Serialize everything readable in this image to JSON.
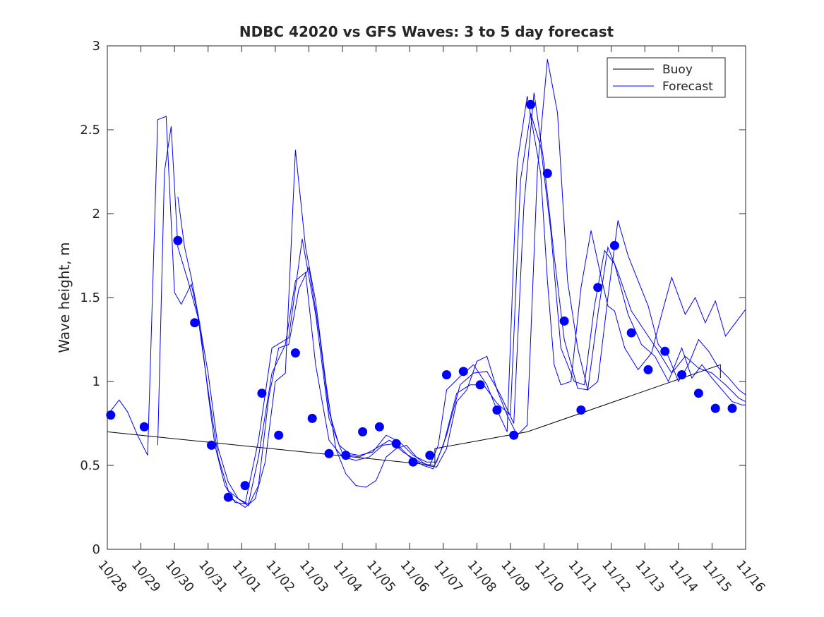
{
  "chart_data": {
    "type": "line",
    "title": "NDBC 42020 vs GFS Waves: 3 to 5 day forecast",
    "xlabel": "",
    "ylabel": "Wave height, m",
    "xlim": [
      0,
      19
    ],
    "ylim": [
      0,
      3
    ],
    "x_ticks": [
      0,
      1,
      2,
      3,
      4,
      5,
      6,
      7,
      8,
      9,
      10,
      11,
      12,
      13,
      14,
      15,
      16,
      17,
      18,
      19
    ],
    "x_tick_labels": [
      "10/28",
      "10/29",
      "10/30",
      "10/31",
      "11/01",
      "11/02",
      "11/03",
      "11/04",
      "11/05",
      "11/06",
      "11/07",
      "11/08",
      "11/09",
      "11/10",
      "11/11",
      "11/12",
      "11/13",
      "11/14",
      "11/15",
      "11/16"
    ],
    "y_ticks": [
      0,
      0.5,
      1,
      1.5,
      2,
      2.5,
      3
    ],
    "y_tick_labels": [
      "0",
      "0.5",
      "1",
      "1.5",
      "2",
      "2.5",
      "3"
    ],
    "legend": {
      "location": "top-right",
      "entries": [
        {
          "label": "Buoy",
          "color": "#000000"
        },
        {
          "label": "Forecast",
          "color": "#0000ff"
        }
      ]
    },
    "series": [
      {
        "name": "Buoy",
        "color": "#000000",
        "x": [
          0,
          9.75,
          9.75,
          12.5,
          18.25,
          18.25
        ],
        "y": [
          0.7,
          0.5,
          0.6,
          0.7,
          1.1,
          1.02
        ]
      },
      {
        "name": "Forecast (run 1)",
        "color": "#0000ff",
        "x": [
          0,
          0.2,
          0.35,
          0.6,
          0.9,
          1.2,
          1.5,
          1.75,
          2.0,
          2.2,
          2.5,
          2.75,
          3.0,
          3.2,
          3.5,
          3.8,
          4.1,
          4.5,
          4.9,
          5.4,
          5.8,
          6.2,
          6.6,
          7.0,
          7.5,
          7.9,
          8.4,
          8.8,
          9.3,
          9.6,
          9.85,
          10.1,
          10.5,
          10.9,
          11.3,
          11.6,
          11.9,
          12.2,
          12.5,
          12.9,
          13.1,
          13.3,
          13.5,
          13.8,
          14.1,
          14.4,
          14.7,
          14.9,
          15.1,
          15.4,
          15.8,
          16.2,
          16.5,
          16.8,
          17.2,
          17.5,
          17.8,
          18.1,
          18.4,
          18.7,
          19.0
        ],
        "y": [
          0.8,
          0.85,
          0.89,
          0.82,
          0.68,
          0.56,
          2.56,
          2.58,
          1.53,
          1.46,
          1.58,
          1.35,
          0.93,
          0.62,
          0.38,
          0.28,
          0.27,
          0.65,
          1.2,
          1.26,
          1.85,
          1.4,
          0.78,
          0.57,
          0.55,
          0.59,
          0.65,
          0.58,
          0.52,
          0.5,
          0.62,
          0.95,
          1.03,
          1.1,
          0.98,
          0.83,
          0.7,
          2.3,
          2.7,
          2.24,
          1.6,
          1.1,
          0.98,
          1.0,
          1.56,
          1.9,
          1.62,
          1.45,
          1.42,
          1.2,
          1.07,
          1.17,
          1.4,
          1.62,
          1.4,
          1.5,
          1.35,
          1.48,
          1.27,
          1.35,
          1.43
        ]
      },
      {
        "name": "Forecast (run 2)",
        "color": "#0000ff",
        "x": [
          1.5,
          1.7,
          1.9,
          2.1,
          2.4,
          2.7,
          3.0,
          3.3,
          3.6,
          3.9,
          4.2,
          4.5,
          4.9,
          5.3,
          5.6,
          5.9,
          6.2,
          6.6,
          7.0,
          7.4,
          7.8,
          8.2,
          8.6,
          9.0,
          9.4,
          9.7,
          10.0,
          10.4,
          10.8,
          11.2,
          11.6,
          12.0,
          12.3,
          12.6,
          12.9,
          13.2,
          13.5,
          13.9,
          14.2,
          14.5,
          14.8,
          15.1,
          15.5,
          15.9,
          16.3,
          16.7,
          17.1,
          17.4,
          17.7,
          18.0,
          18.3,
          18.6,
          18.9,
          19.0
        ],
        "y": [
          0.62,
          2.25,
          2.52,
          1.8,
          1.6,
          1.38,
          0.95,
          0.55,
          0.35,
          0.3,
          0.27,
          0.55,
          1.05,
          1.22,
          1.6,
          1.65,
          1.1,
          0.65,
          0.55,
          0.53,
          0.55,
          0.62,
          0.63,
          0.55,
          0.5,
          0.48,
          0.62,
          0.93,
          0.98,
          0.98,
          0.87,
          0.8,
          2.2,
          2.6,
          2.4,
          1.9,
          1.2,
          1.0,
          0.98,
          1.45,
          1.78,
          1.7,
          1.4,
          1.22,
          1.15,
          1.0,
          1.2,
          1.02,
          1.1,
          1.02,
          0.95,
          0.88,
          0.86,
          0.86
        ]
      },
      {
        "name": "Forecast (run 3)",
        "color": "#0000ff",
        "x": [
          2.1,
          2.3,
          2.5,
          2.7,
          3.0,
          3.3,
          3.6,
          3.9,
          4.2,
          4.5,
          4.8,
          5.1,
          5.4,
          5.7,
          6.0,
          6.3,
          6.6,
          6.9,
          7.2,
          7.5,
          7.9,
          8.3,
          8.7,
          9.1,
          9.5,
          9.8,
          10.1,
          10.5,
          10.9,
          11.3,
          11.7,
          12.1,
          12.4,
          12.7,
          13.0,
          13.3,
          13.6,
          14.0,
          14.3,
          14.6,
          14.9,
          15.2,
          15.6,
          16.0,
          16.4,
          16.8,
          17.2,
          17.6,
          18.0,
          18.4,
          18.8,
          19.0
        ],
        "y": [
          2.1,
          1.8,
          1.62,
          1.4,
          1.05,
          0.6,
          0.4,
          0.3,
          0.26,
          0.38,
          0.9,
          1.2,
          1.22,
          1.55,
          1.68,
          1.3,
          0.82,
          0.62,
          0.57,
          0.56,
          0.58,
          0.68,
          0.64,
          0.56,
          0.52,
          0.52,
          0.68,
          0.98,
          1.05,
          1.06,
          0.92,
          0.75,
          2.05,
          2.72,
          2.3,
          1.75,
          1.25,
          0.96,
          0.95,
          1.4,
          1.8,
          1.65,
          1.42,
          1.3,
          1.18,
          1.05,
          1.15,
          1.08,
          1.05,
          0.98,
          0.9,
          0.88
        ]
      },
      {
        "name": "Forecast (run 4)",
        "color": "#0000ff",
        "x": [
          3.5,
          3.8,
          4.1,
          4.4,
          4.7,
          5.0,
          5.3,
          5.6,
          5.9,
          6.2,
          6.5,
          6.8,
          7.1,
          7.4,
          7.7,
          8.0,
          8.3,
          8.6,
          8.9,
          9.2,
          9.5,
          9.8,
          10.1,
          10.4,
          10.7,
          11.0,
          11.3,
          11.6,
          11.9,
          12.2,
          12.5,
          12.8,
          13.1,
          13.4,
          13.7,
          14.0,
          14.3,
          14.6,
          14.9,
          15.2,
          15.5,
          15.8,
          16.1,
          16.4,
          16.7,
          17.0,
          17.3,
          17.6,
          17.9,
          18.2,
          18.5,
          18.8,
          19.0
        ],
        "y": [
          0.32,
          0.29,
          0.25,
          0.3,
          0.52,
          1.0,
          1.05,
          2.38,
          1.8,
          1.48,
          1.0,
          0.6,
          0.45,
          0.38,
          0.37,
          0.41,
          0.55,
          0.6,
          0.62,
          0.55,
          0.5,
          0.49,
          0.6,
          0.88,
          0.95,
          1.12,
          1.15,
          0.95,
          0.8,
          0.68,
          0.74,
          2.25,
          2.92,
          2.6,
          1.6,
          1.2,
          0.95,
          1.0,
          1.5,
          1.96,
          1.75,
          1.6,
          1.45,
          1.22,
          1.15,
          1.0,
          1.1,
          1.25,
          1.18,
          1.08,
          1.02,
          0.95,
          0.92
        ]
      }
    ],
    "markers": {
      "name": "Buoy observations",
      "color": "#0000ff",
      "x": [
        0.1,
        1.1,
        2.1,
        2.6,
        3.1,
        3.6,
        4.1,
        4.6,
        5.1,
        5.6,
        6.1,
        6.6,
        7.1,
        7.6,
        8.1,
        8.6,
        9.1,
        9.6,
        10.1,
        10.6,
        11.1,
        11.6,
        12.1,
        12.6,
        13.1,
        13.6,
        14.1,
        14.6,
        15.1,
        15.6,
        16.1,
        16.6,
        17.1,
        17.6,
        18.1,
        18.6
      ],
      "y": [
        0.8,
        0.73,
        1.84,
        1.35,
        0.62,
        0.31,
        0.38,
        0.93,
        0.68,
        1.17,
        0.78,
        0.57,
        0.56,
        0.7,
        0.73,
        0.63,
        0.52,
        0.56,
        1.04,
        1.06,
        0.98,
        0.83,
        0.68,
        2.65,
        2.24,
        1.36,
        0.83,
        1.56,
        1.81,
        1.29,
        1.07,
        1.18,
        1.04,
        0.93,
        0.84,
        0.84
      ]
    }
  }
}
